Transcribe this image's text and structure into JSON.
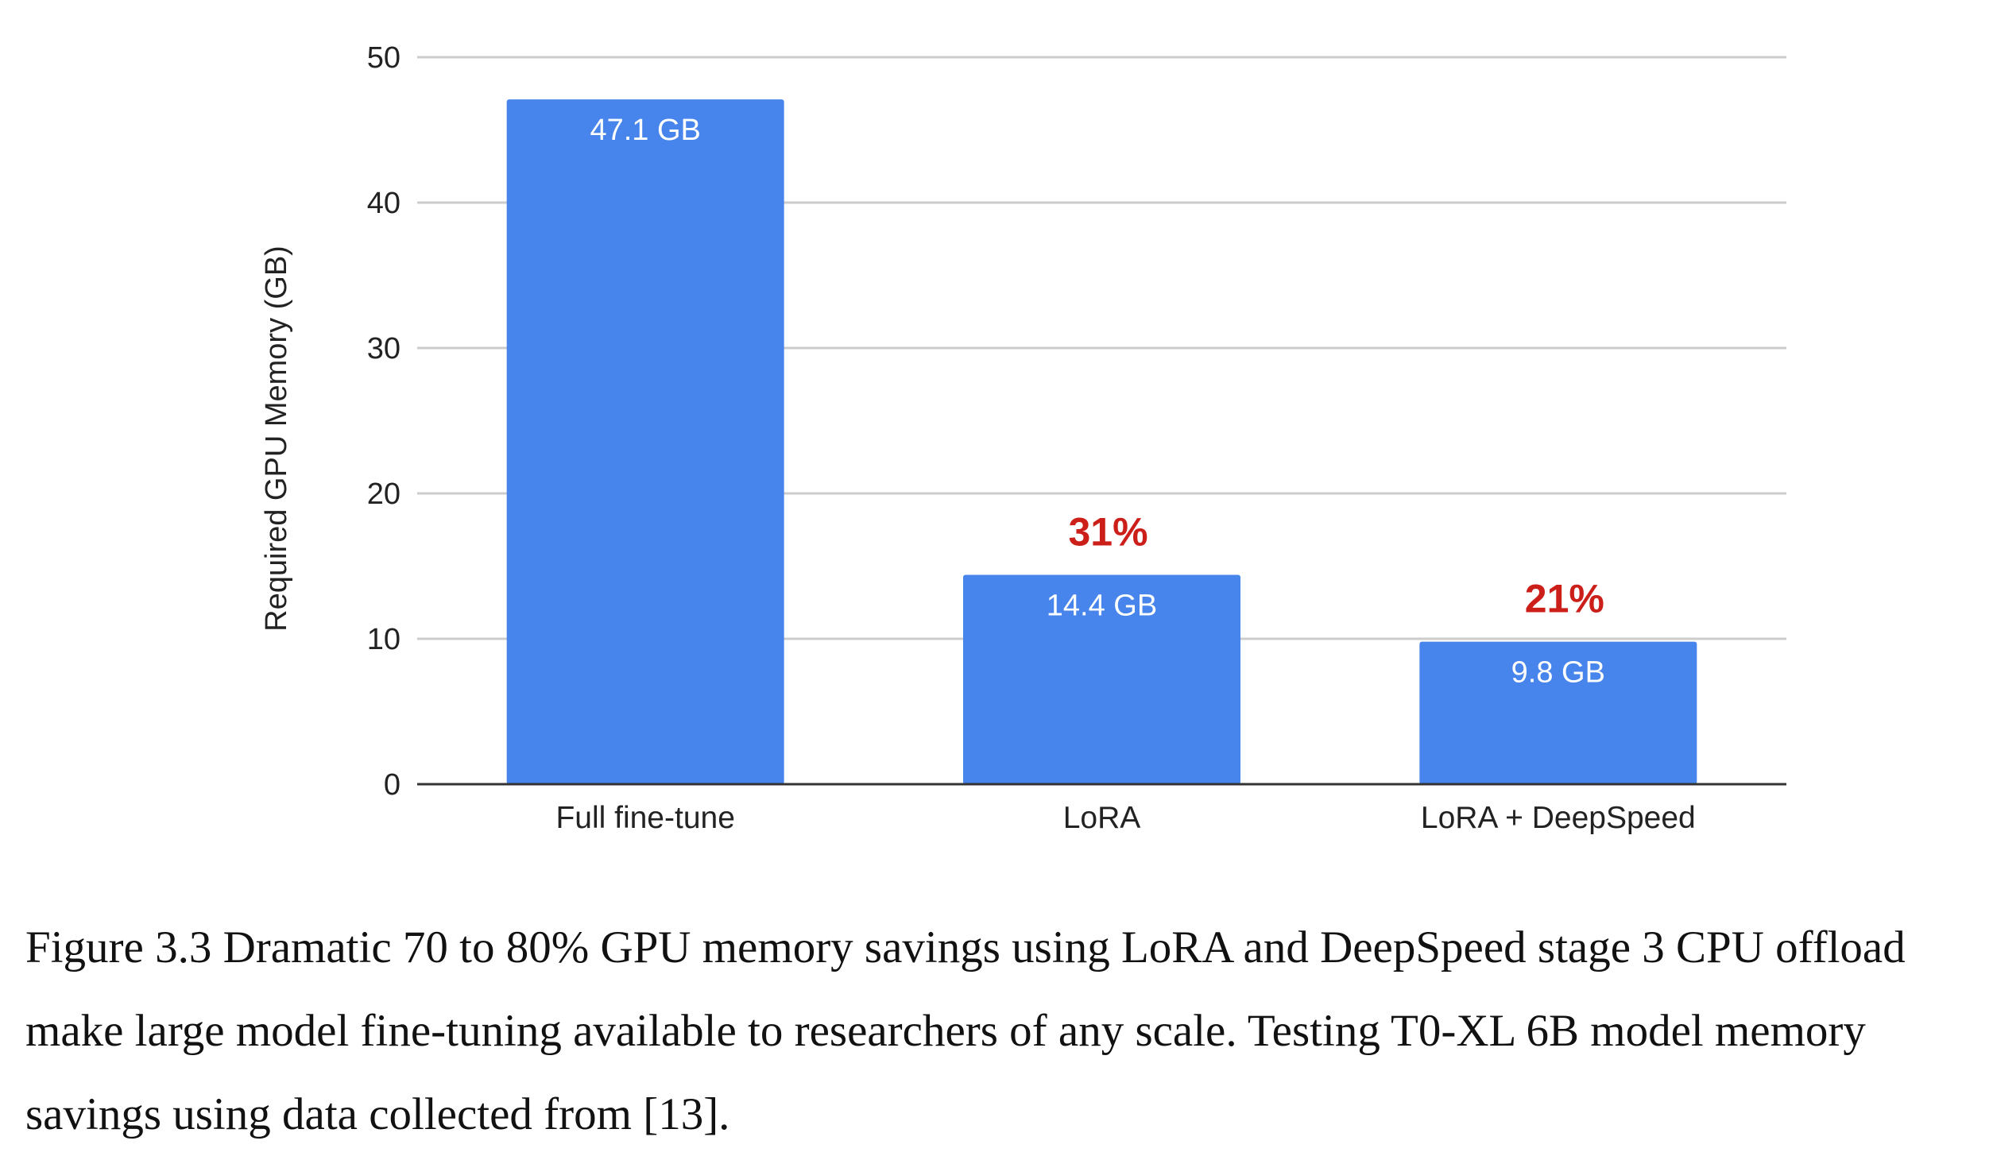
{
  "chart_data": {
    "type": "bar",
    "categories": [
      "Full fine-tune",
      "LoRA",
      "LoRA + DeepSpeed"
    ],
    "values": [
      47.1,
      14.4,
      9.8
    ],
    "data_labels": [
      "47.1 GB",
      "14.4 GB",
      "9.8 GB"
    ],
    "annotations": [
      "",
      "31%",
      "21%"
    ],
    "annotation_color": "#cc1f1a",
    "bar_color": "#4785ec",
    "title": "",
    "xlabel": "",
    "ylabel": "Required GPU Memory (GB)",
    "ylim": [
      0,
      50
    ],
    "yticks": [
      0,
      10,
      20,
      30,
      40,
      50
    ],
    "grid": true,
    "legend": "none"
  },
  "caption": "Figure 3.3 Dramatic 70 to 80% GPU memory savings using LoRA and DeepSpeed stage 3 CPU offload make large model fine-tuning available to researchers of any scale. Testing T0-XL 6B model memory savings using data collected from [13]."
}
